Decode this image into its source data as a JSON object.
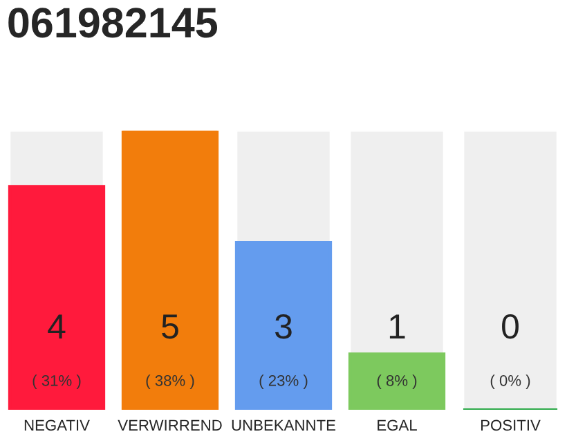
{
  "chart_data": {
    "type": "bar",
    "title": "061982145",
    "categories": [
      "NEGATIV",
      "VERWIRREND",
      "UNBEKANNTE",
      "EGAL",
      "POSITIV"
    ],
    "values": [
      4,
      5,
      3,
      1,
      0
    ],
    "colors": [
      "#ff1a3c",
      "#f27d0c",
      "#649cee",
      "#7dc95e",
      "#2eaa4a"
    ],
    "tick_labels": "x",
    "grid": false,
    "value_labels": [
      "4\n( 31% )",
      "5\n( 38% )",
      "3\n( 23% )",
      "1\n( 8% )",
      "0\n( 0% )"
    ]
  }
}
